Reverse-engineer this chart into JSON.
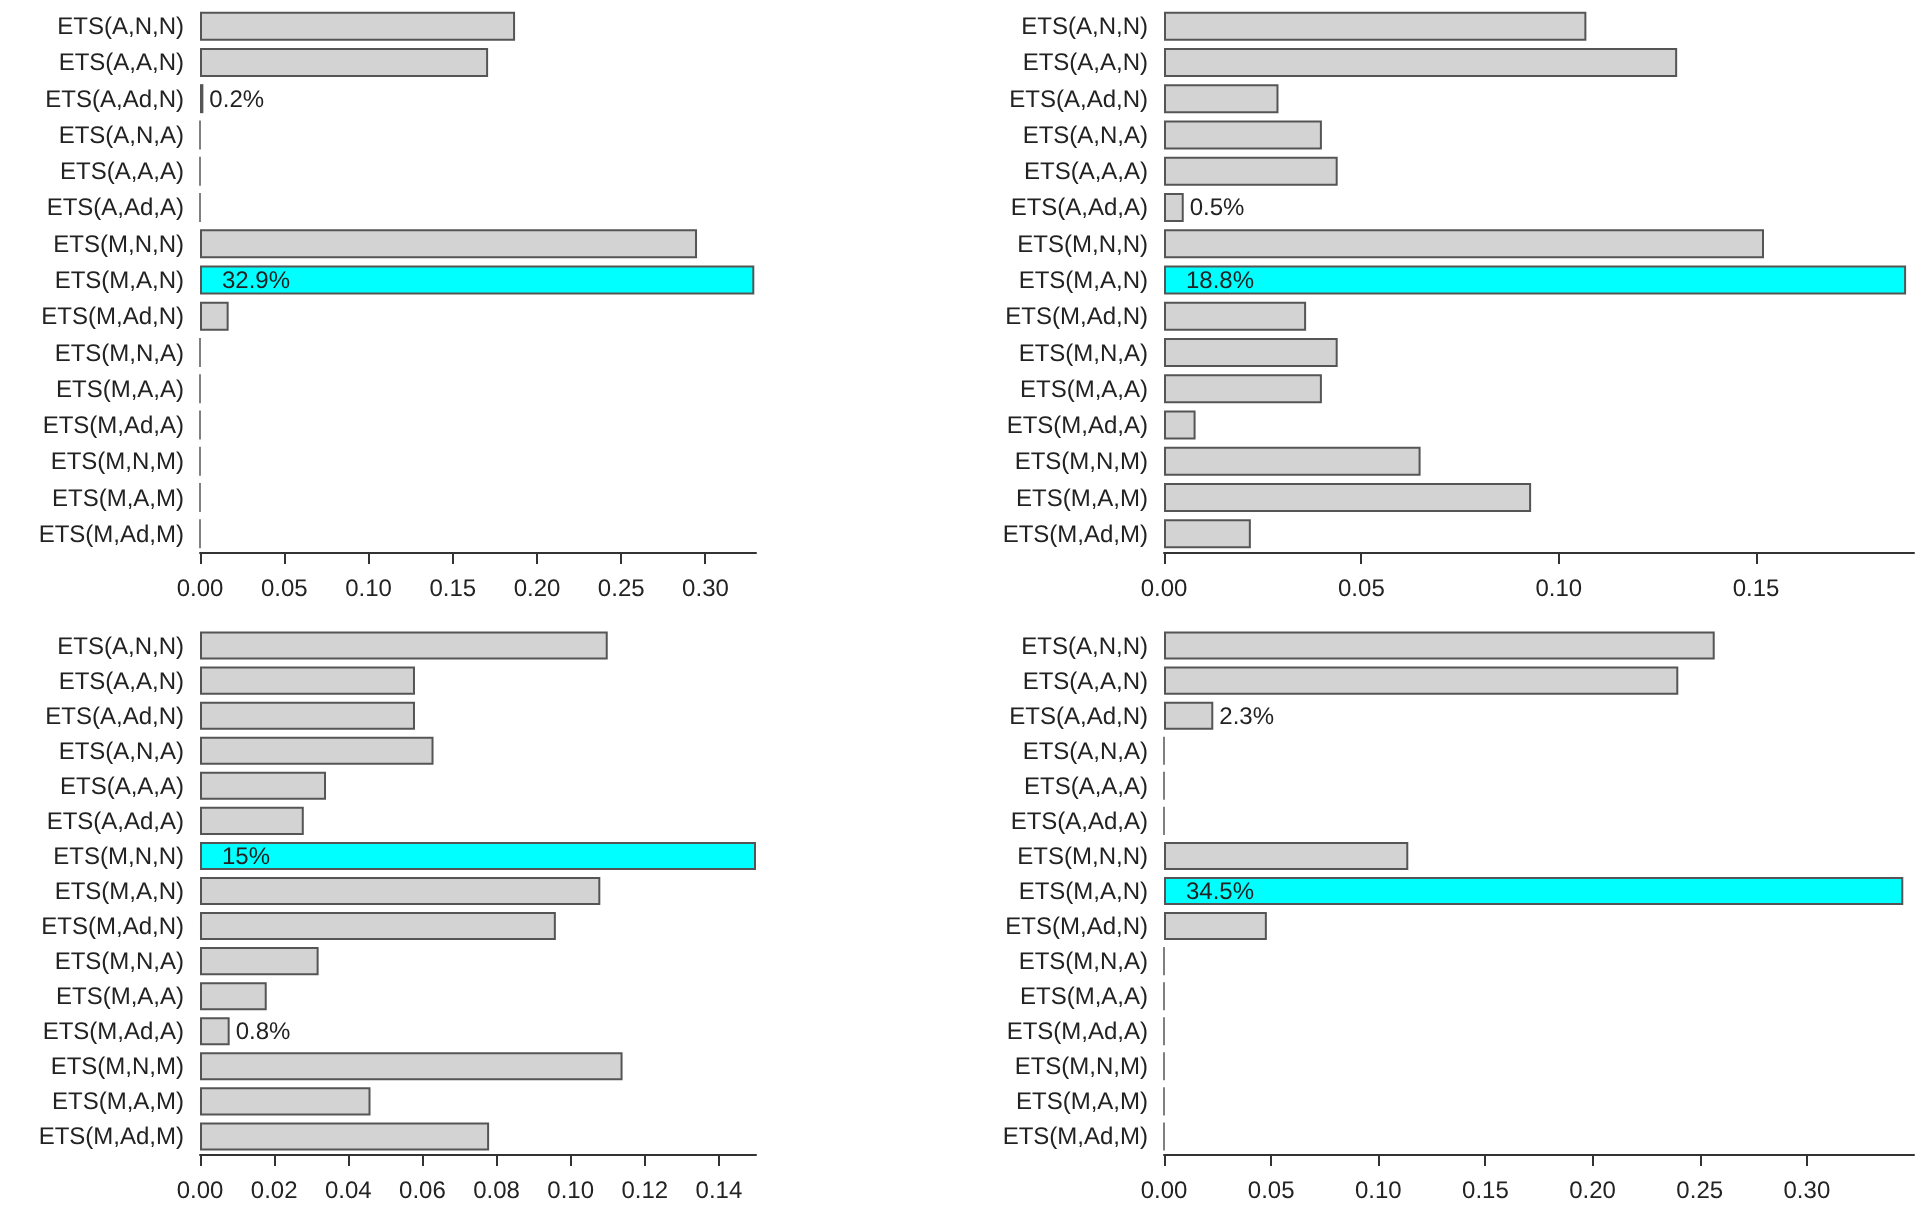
{
  "chart_data": [
    {
      "type": "bar",
      "orientation": "horizontal",
      "categories": [
        "ETS(A,N,N)",
        "ETS(A,A,N)",
        "ETS(A,Ad,N)",
        "ETS(A,N,A)",
        "ETS(A,A,A)",
        "ETS(A,Ad,A)",
        "ETS(M,N,N)",
        "ETS(M,A,N)",
        "ETS(M,Ad,N)",
        "ETS(M,N,A)",
        "ETS(M,A,A)",
        "ETS(M,Ad,A)",
        "ETS(M,N,M)",
        "ETS(M,A,M)",
        "ETS(M,Ad,M)"
      ],
      "values": [
        0.187,
        0.171,
        0.002,
        0,
        0,
        0,
        0.295,
        0.329,
        0.017,
        0,
        0,
        0,
        0,
        0,
        0
      ],
      "colors": [
        "#d3d3d3",
        "#d3d3d3",
        "#d3d3d3",
        "#808080",
        "#808080",
        "#808080",
        "#d3d3d3",
        "#00ffff",
        "#d3d3d3",
        "#808080",
        "#808080",
        "#808080",
        "#808080",
        "#808080",
        "#808080"
      ],
      "value_labels": [
        null,
        null,
        "0.2%",
        null,
        null,
        null,
        null,
        "32.9%",
        null,
        null,
        null,
        null,
        null,
        null,
        null
      ],
      "xlim": [
        0,
        0.33
      ],
      "xticks": [
        {
          "value": 0,
          "label": "0.00"
        },
        {
          "value": 0.05,
          "label": "0.05"
        },
        {
          "value": 0.1,
          "label": "0.10"
        },
        {
          "value": 0.15,
          "label": "0.15"
        },
        {
          "value": 0.2,
          "label": "0.20"
        },
        {
          "value": 0.25,
          "label": "0.25"
        },
        {
          "value": 0.3,
          "label": "0.30"
        }
      ],
      "grid": false
    },
    {
      "type": "bar",
      "orientation": "horizontal",
      "categories": [
        "ETS(A,N,N)",
        "ETS(A,A,N)",
        "ETS(A,Ad,N)",
        "ETS(A,N,A)",
        "ETS(A,A,A)",
        "ETS(A,Ad,A)",
        "ETS(M,N,N)",
        "ETS(M,A,N)",
        "ETS(M,Ad,N)",
        "ETS(M,N,A)",
        "ETS(M,A,A)",
        "ETS(M,Ad,A)",
        "ETS(M,N,M)",
        "ETS(M,A,M)",
        "ETS(M,Ad,M)"
      ],
      "values": [
        0.107,
        0.13,
        0.029,
        0.04,
        0.044,
        0.005,
        0.152,
        0.188,
        0.036,
        0.044,
        0.04,
        0.008,
        0.065,
        0.093,
        0.022
      ],
      "colors": [
        "#d3d3d3",
        "#d3d3d3",
        "#d3d3d3",
        "#d3d3d3",
        "#d3d3d3",
        "#d3d3d3",
        "#d3d3d3",
        "#00ffff",
        "#d3d3d3",
        "#d3d3d3",
        "#d3d3d3",
        "#d3d3d3",
        "#d3d3d3",
        "#d3d3d3",
        "#d3d3d3"
      ],
      "value_labels": [
        null,
        null,
        null,
        null,
        null,
        "0.5%",
        null,
        "18.8%",
        null,
        null,
        null,
        null,
        null,
        null,
        null
      ],
      "xlim": [
        0,
        0.19
      ],
      "xticks": [
        {
          "value": 0,
          "label": "0.00"
        },
        {
          "value": 0.05,
          "label": "0.05"
        },
        {
          "value": 0.1,
          "label": "0.10"
        },
        {
          "value": 0.15,
          "label": "0.15"
        }
      ],
      "grid": false
    },
    {
      "type": "bar",
      "orientation": "horizontal",
      "categories": [
        "ETS(A,N,N)",
        "ETS(A,A,N)",
        "ETS(A,Ad,N)",
        "ETS(A,N,A)",
        "ETS(A,A,A)",
        "ETS(A,Ad,A)",
        "ETS(M,N,N)",
        "ETS(M,A,N)",
        "ETS(M,Ad,N)",
        "ETS(M,N,A)",
        "ETS(M,A,A)",
        "ETS(M,Ad,A)",
        "ETS(M,N,M)",
        "ETS(M,A,M)",
        "ETS(M,Ad,M)"
      ],
      "values": [
        0.11,
        0.058,
        0.058,
        0.063,
        0.034,
        0.028,
        0.15,
        0.108,
        0.096,
        0.032,
        0.018,
        0.008,
        0.114,
        0.046,
        0.078
      ],
      "colors": [
        "#d3d3d3",
        "#d3d3d3",
        "#d3d3d3",
        "#d3d3d3",
        "#d3d3d3",
        "#d3d3d3",
        "#00ffff",
        "#d3d3d3",
        "#d3d3d3",
        "#d3d3d3",
        "#d3d3d3",
        "#d3d3d3",
        "#d3d3d3",
        "#d3d3d3",
        "#d3d3d3"
      ],
      "value_labels": [
        null,
        null,
        null,
        null,
        null,
        null,
        "15%",
        null,
        null,
        null,
        null,
        "0.8%",
        null,
        null,
        null
      ],
      "xlim": [
        0,
        0.15
      ],
      "xticks": [
        {
          "value": 0,
          "label": "0.00"
        },
        {
          "value": 0.02,
          "label": "0.02"
        },
        {
          "value": 0.04,
          "label": "0.04"
        },
        {
          "value": 0.06,
          "label": "0.06"
        },
        {
          "value": 0.08,
          "label": "0.08"
        },
        {
          "value": 0.1,
          "label": "0.10"
        },
        {
          "value": 0.12,
          "label": "0.12"
        },
        {
          "value": 0.14,
          "label": "0.14"
        }
      ],
      "grid": false
    },
    {
      "type": "bar",
      "orientation": "horizontal",
      "categories": [
        "ETS(A,N,N)",
        "ETS(A,A,N)",
        "ETS(A,Ad,N)",
        "ETS(A,N,A)",
        "ETS(A,A,A)",
        "ETS(A,Ad,A)",
        "ETS(M,N,N)",
        "ETS(M,A,N)",
        "ETS(M,Ad,N)",
        "ETS(M,N,A)",
        "ETS(M,A,A)",
        "ETS(M,Ad,A)",
        "ETS(M,N,M)",
        "ETS(M,A,M)",
        "ETS(M,Ad,M)"
      ],
      "values": [
        0.257,
        0.24,
        0.023,
        0,
        0,
        0,
        0.114,
        0.345,
        0.048,
        0,
        0,
        0,
        0,
        0,
        0
      ],
      "colors": [
        "#d3d3d3",
        "#d3d3d3",
        "#d3d3d3",
        "#808080",
        "#808080",
        "#808080",
        "#d3d3d3",
        "#00ffff",
        "#d3d3d3",
        "#808080",
        "#808080",
        "#808080",
        "#808080",
        "#808080",
        "#808080"
      ],
      "value_labels": [
        null,
        null,
        "2.3%",
        null,
        null,
        null,
        null,
        "34.5%",
        null,
        null,
        null,
        null,
        null,
        null,
        null
      ],
      "xlim": [
        0,
        0.35
      ],
      "xticks": [
        {
          "value": 0,
          "label": "0.00"
        },
        {
          "value": 0.05,
          "label": "0.05"
        },
        {
          "value": 0.1,
          "label": "0.10"
        },
        {
          "value": 0.15,
          "label": "0.15"
        },
        {
          "value": 0.2,
          "label": "0.20"
        },
        {
          "value": 0.25,
          "label": "0.25"
        },
        {
          "value": 0.3,
          "label": "0.30"
        }
      ],
      "grid": false
    }
  ]
}
